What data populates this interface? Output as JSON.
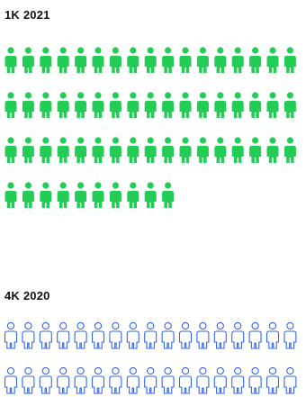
{
  "chart_data": {
    "type": "pictogram",
    "sections": [
      {
        "label": "1K 2021",
        "icons": 61,
        "per_row": 17,
        "style": "filled",
        "color": "#22cc55"
      },
      {
        "label": "4K 2020",
        "icons": 34,
        "per_row": 17,
        "style": "outline",
        "color": "#3366ee"
      }
    ]
  }
}
